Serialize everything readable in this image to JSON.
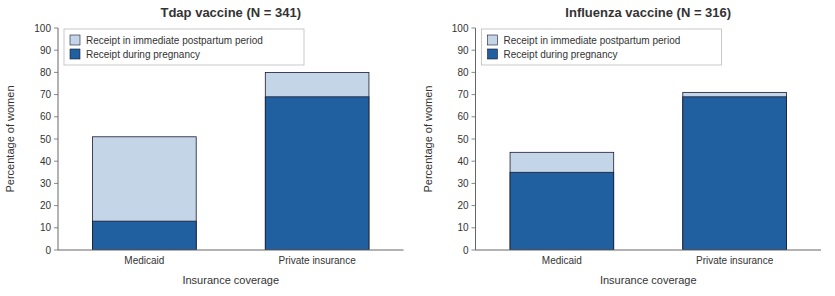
{
  "chart_data": [
    {
      "type": "bar",
      "title": "Tdap vaccine (N = 341)",
      "categories": [
        "Medicaid",
        "Private insurance"
      ],
      "series": [
        {
          "name": "Receipt in immediate postpartum period",
          "color": "#c5d5e8",
          "values": [
            51,
            80
          ]
        },
        {
          "name": "Receipt during pregnancy",
          "color": "#2060a0",
          "values": [
            13,
            69
          ]
        }
      ],
      "x_label": "Insurance coverage",
      "y_label": "Percentage of women",
      "ylim": [
        0,
        100
      ],
      "yticks": [
        0,
        10,
        20,
        30,
        40,
        50,
        60,
        70,
        80,
        90,
        100
      ],
      "legend": "upper left",
      "stacked": false,
      "grid": false
    },
    {
      "type": "bar",
      "title": "Influenza vaccine (N = 316)",
      "categories": [
        "Medicaid",
        "Private insurance"
      ],
      "series": [
        {
          "name": "Receipt in immediate postpartum period",
          "color": "#c5d5e8",
          "values": [
            44,
            71
          ]
        },
        {
          "name": "Receipt during pregnancy",
          "color": "#2060a0",
          "values": [
            35,
            69
          ]
        }
      ],
      "x_label": "Insurance coverage",
      "y_label": "Percentage of women",
      "ylim": [
        0,
        100
      ],
      "yticks": [
        0,
        10,
        20,
        30,
        40,
        50,
        60,
        70,
        80,
        90,
        100
      ],
      "legend": "upper left",
      "stacked": false,
      "grid": false
    }
  ]
}
